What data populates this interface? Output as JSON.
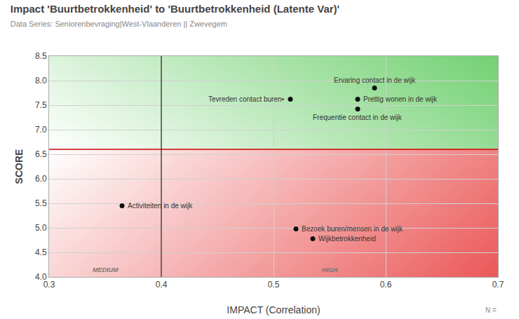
{
  "chart_data": {
    "type": "scatter",
    "title": "Impact 'Buurtbetrokkenheid' to 'Buurtbetrokkenheid (Latente Var)'",
    "subtitle": "Data Series: Seniorenbevraging|West-Vlaanderen || Zwevegem",
    "xlabel": "IMPACT (Correlation)",
    "ylabel": "SCORE",
    "xlim": [
      0.3,
      0.7
    ],
    "ylim": [
      4.0,
      8.5
    ],
    "xticks": [
      0.3,
      0.4,
      0.5,
      0.6,
      0.7
    ],
    "yticks": [
      {
        "value": 4.0,
        "label": "4.0"
      },
      4.5,
      {
        "value": 5.0,
        "label": "5.0"
      },
      5.5,
      {
        "value": 6.0,
        "label": "6.0"
      },
      6.5,
      {
        "value": 7.0,
        "label": "7.0"
      },
      7.5,
      {
        "value": 8.0,
        "label": "8.0"
      },
      8.5
    ],
    "grid": true,
    "x": [
      0.365,
      0.515,
      0.59,
      0.575,
      0.575,
      0.52,
      0.535
    ],
    "values": [
      5.45,
      7.62,
      7.85,
      7.62,
      7.42,
      4.98,
      4.78
    ],
    "labels": [
      "Activiteiten in de wijk",
      "Tevreden contact buren•",
      "Ervaring contact in de wijk",
      "Prettig wonen in de wijk",
      "Frequentie contact in de wijk",
      "Bezoek buren/mensen in de wijk",
      "Wijkbetrokkenheid"
    ],
    "color": "#111111",
    "hline": {
      "y": 6.6,
      "color": "#cc0000",
      "above_color": "#73d173",
      "below_color": "#eb5959"
    },
    "vline": {
      "x": 0.4,
      "color": "#222222"
    },
    "annotations": [
      "MEDIUM",
      "HIGH"
    ],
    "note": "N ="
  }
}
